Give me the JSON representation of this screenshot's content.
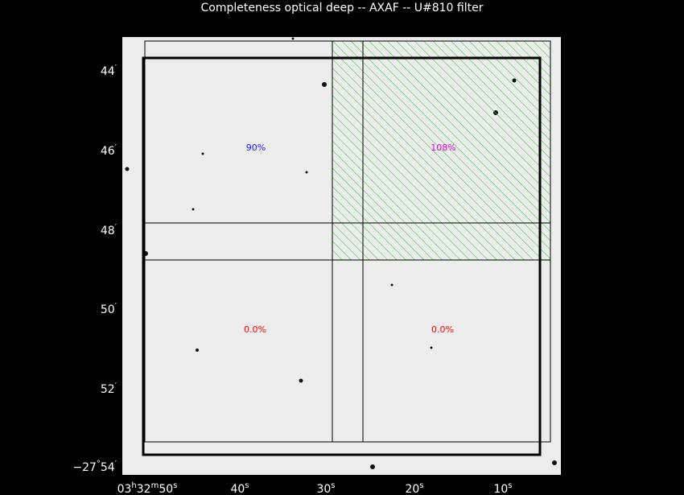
{
  "title": "Completeness optical deep -- AXAF -- U#810 filter",
  "y_labels": [
    [
      "44",
      "′"
    ],
    [
      "46",
      "′"
    ],
    [
      "48",
      "′"
    ],
    [
      "50",
      "′"
    ],
    [
      "52",
      "′"
    ],
    [
      "−27",
      "°",
      "54",
      "′"
    ]
  ],
  "x_labels": [
    [
      "03",
      "h",
      "32",
      "m",
      "50",
      "s"
    ],
    [
      "40",
      "s"
    ],
    [
      "30",
      "s"
    ],
    [
      "20",
      "s"
    ],
    [
      "10",
      "s"
    ]
  ],
  "cells": [
    {
      "label": "90%",
      "color": "#1a1aff"
    },
    {
      "label": "108%",
      "color": "#e000e0"
    },
    {
      "label": "0.0%",
      "color": "#ff0000"
    },
    {
      "label": "0.0%",
      "color": "#ff0000"
    }
  ]
}
